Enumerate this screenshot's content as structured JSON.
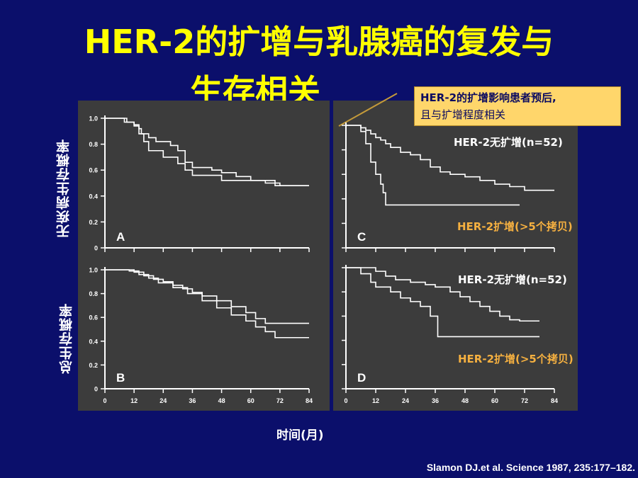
{
  "slide": {
    "title_line1": "HER-2的扩增与乳腺癌的复发与",
    "title_line2": "生存相关",
    "callout_line1": "HER-2的扩增影响患者预后,",
    "callout_line2": "且与扩增程度相关",
    "ylabel_top": "无疾病生存概率",
    "ylabel_bottom": "总生存概率",
    "xlabel": "时间(月)",
    "source": "Slamon DJ.et al. Science 1987, 235:177–182."
  },
  "colors": {
    "background": "#0b0f6b",
    "title": "#ffff00",
    "callout_bg": "#ffd66b",
    "panel": "#3c3c3c",
    "curve": "#ffffff",
    "label_white": "#ffffff",
    "label_orange": "#f5b040",
    "pointer": "#c49a3a"
  },
  "chart_data": [
    {
      "type": "line",
      "panel": "A",
      "x_ticks": [
        0,
        12,
        24,
        36,
        48,
        60,
        72,
        84
      ],
      "y_ticks": [
        "0",
        "0.2",
        "0.4",
        "0.6",
        "0.8",
        "1.0"
      ],
      "xlim": [
        0,
        84
      ],
      "ylim": [
        0,
        1.0
      ],
      "series": [
        {
          "x": [
            0,
            6,
            9,
            12,
            14,
            15,
            18,
            21,
            24,
            27,
            30,
            33,
            36,
            40,
            44,
            48,
            54,
            60,
            66,
            72,
            84
          ],
          "y": [
            1.0,
            1.0,
            0.97,
            0.95,
            0.92,
            0.88,
            0.85,
            0.82,
            0.82,
            0.79,
            0.75,
            0.66,
            0.62,
            0.62,
            0.6,
            0.58,
            0.55,
            0.52,
            0.5,
            0.48,
            0.48
          ]
        },
        {
          "x": [
            0,
            8,
            12,
            14,
            16,
            18,
            24,
            30,
            33,
            36,
            42,
            48,
            60,
            70,
            84
          ],
          "y": [
            1.0,
            0.97,
            0.94,
            0.88,
            0.82,
            0.75,
            0.7,
            0.65,
            0.6,
            0.56,
            0.56,
            0.52,
            0.52,
            0.48,
            0.48
          ]
        }
      ]
    },
    {
      "type": "line",
      "panel": "B",
      "x_ticks": [
        0,
        12,
        24,
        36,
        48,
        60,
        72,
        84
      ],
      "y_ticks": [
        "0",
        "0.2",
        "0.4",
        "0.6",
        "0.8",
        "1.0"
      ],
      "xlim": [
        0,
        84
      ],
      "ylim": [
        0,
        1.0
      ],
      "series": [
        {
          "x": [
            0,
            8,
            12,
            16,
            20,
            24,
            28,
            32,
            36,
            40,
            46,
            52,
            58,
            62,
            66,
            70,
            84
          ],
          "y": [
            1.0,
            1.0,
            0.98,
            0.95,
            0.92,
            0.9,
            0.87,
            0.84,
            0.81,
            0.78,
            0.74,
            0.69,
            0.64,
            0.59,
            0.55,
            0.55,
            0.55
          ]
        },
        {
          "x": [
            0,
            10,
            14,
            18,
            22,
            28,
            34,
            40,
            46,
            52,
            58,
            62,
            66,
            70,
            84
          ],
          "y": [
            1.0,
            0.99,
            0.96,
            0.93,
            0.89,
            0.85,
            0.8,
            0.74,
            0.68,
            0.62,
            0.57,
            0.52,
            0.48,
            0.43,
            0.43
          ]
        }
      ]
    },
    {
      "type": "line",
      "panel": "C",
      "x_ticks": [
        0,
        12,
        24,
        36,
        48,
        60,
        72,
        84
      ],
      "y_ticks": [
        "0",
        "0.2",
        "0.4",
        "0.6",
        "0.8",
        "1.0"
      ],
      "xlim": [
        0,
        84
      ],
      "ylim": [
        0,
        1.0
      ],
      "series": [
        {
          "name": "HER-2无扩增(n=52)",
          "x": [
            0,
            6,
            8,
            10,
            12,
            14,
            16,
            18,
            22,
            26,
            30,
            34,
            38,
            42,
            48,
            54,
            60,
            66,
            72,
            78,
            84
          ],
          "y": [
            1.0,
            0.98,
            0.96,
            0.93,
            0.9,
            0.88,
            0.85,
            0.82,
            0.78,
            0.76,
            0.72,
            0.66,
            0.62,
            0.6,
            0.58,
            0.55,
            0.52,
            0.5,
            0.47,
            0.47,
            0.47
          ]
        },
        {
          "name": "HER-2扩增(>5个拷贝)",
          "x": [
            0,
            6,
            8,
            10,
            12,
            14,
            15,
            16,
            20,
            30,
            40,
            50,
            60,
            70
          ],
          "y": [
            1.0,
            0.95,
            0.85,
            0.7,
            0.6,
            0.52,
            0.45,
            0.35,
            0.35,
            0.35,
            0.35,
            0.35,
            0.35,
            0.35
          ]
        }
      ]
    },
    {
      "type": "line",
      "panel": "D",
      "x_ticks": [
        0,
        12,
        24,
        36,
        48,
        60,
        72,
        84
      ],
      "y_ticks": [
        "0",
        "0.2",
        "0.4",
        "0.6",
        "0.8",
        "1.0"
      ],
      "xlim": [
        0,
        84
      ],
      "ylim": [
        0,
        1.0
      ],
      "series": [
        {
          "name": "HER-2无扩增(n=52)",
          "x": [
            0,
            12,
            16,
            20,
            26,
            32,
            36,
            42,
            46,
            50,
            54,
            58,
            62,
            66,
            70,
            78
          ],
          "y": [
            1.0,
            0.97,
            0.93,
            0.9,
            0.88,
            0.86,
            0.84,
            0.8,
            0.76,
            0.72,
            0.68,
            0.64,
            0.6,
            0.57,
            0.56,
            0.56
          ]
        },
        {
          "name": "HER-2扩增(>5个拷贝)",
          "x": [
            0,
            6,
            10,
            12,
            18,
            22,
            26,
            30,
            34,
            37,
            40,
            50,
            60,
            70,
            78
          ],
          "y": [
            1.0,
            0.95,
            0.88,
            0.84,
            0.8,
            0.75,
            0.72,
            0.68,
            0.6,
            0.43,
            0.43,
            0.43,
            0.43,
            0.43,
            0.43
          ]
        }
      ]
    }
  ]
}
